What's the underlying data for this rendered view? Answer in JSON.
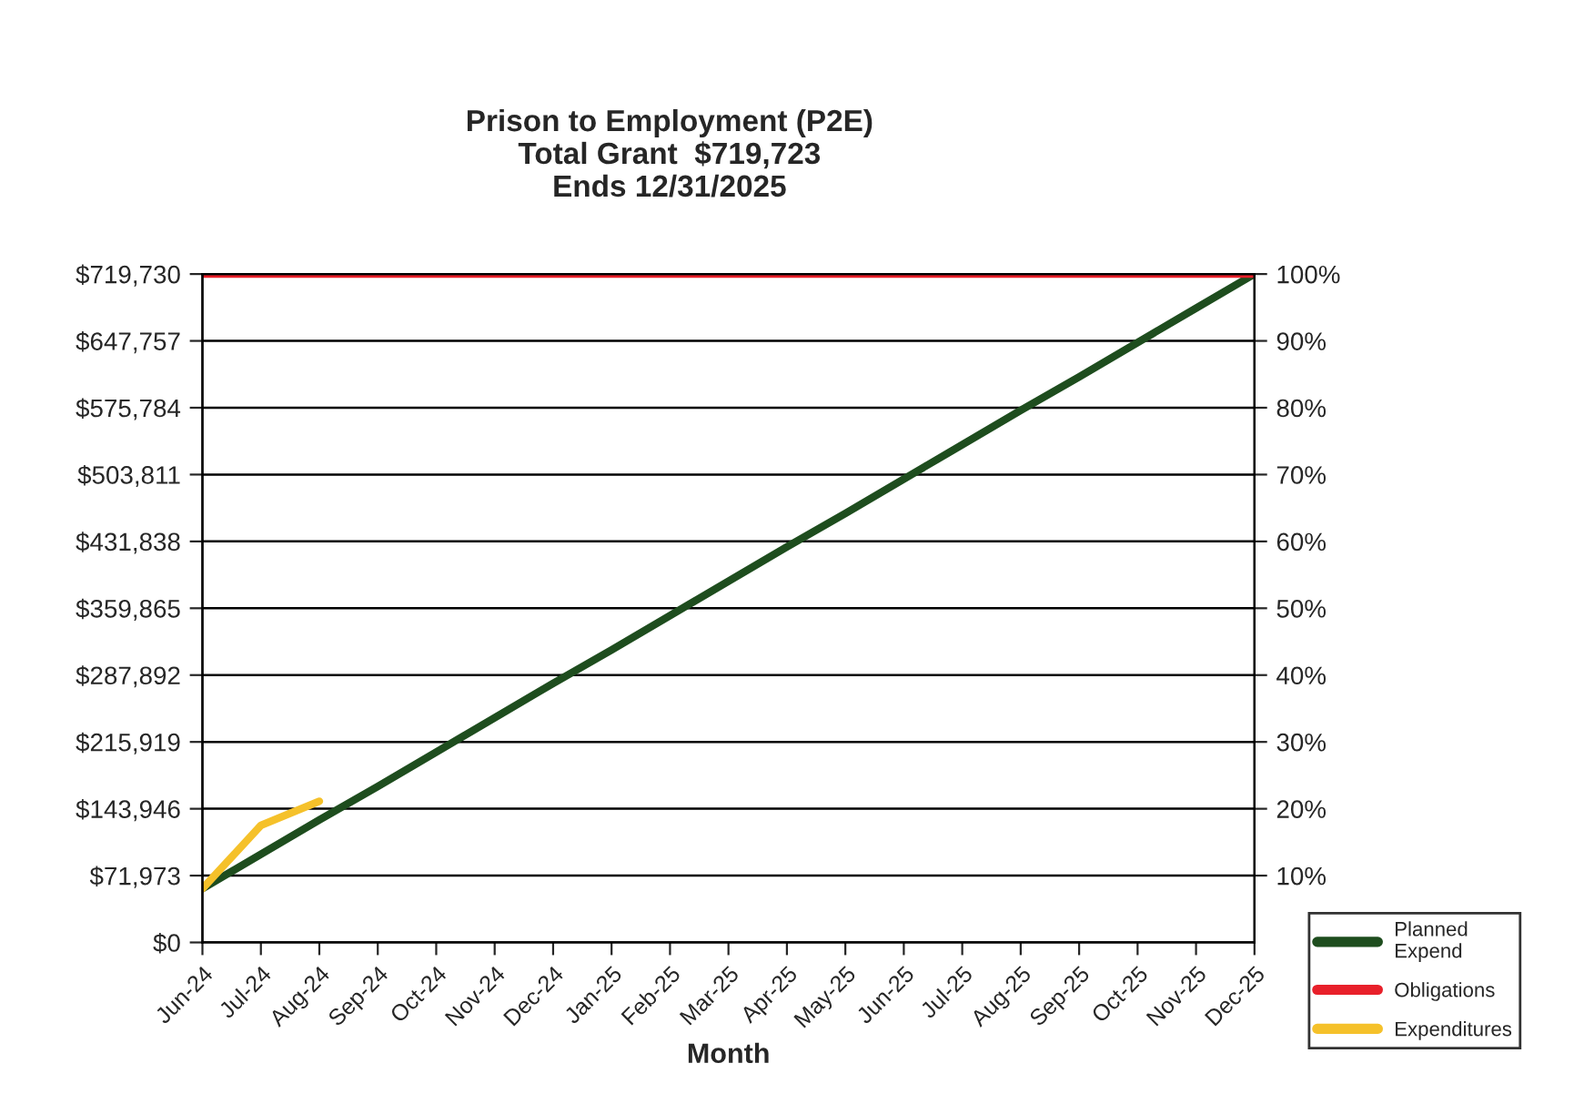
{
  "chart_data": {
    "type": "line",
    "title": "Prison to Employment (P2E)\nTotal Grant  $719,723\nEnds 12/31/2025",
    "xlabel": "Month",
    "categories": [
      "Jun-24",
      "Jul-24",
      "Aug-24",
      "Sep-24",
      "Oct-24",
      "Nov-24",
      "Dec-24",
      "Jan-25",
      "Feb-25",
      "Mar-25",
      "Apr-25",
      "May-25",
      "Jun-25",
      "Jul-25",
      "Aug-25",
      "Sep-25",
      "Oct-25",
      "Nov-25",
      "Dec-25"
    ],
    "series": [
      {
        "name": "Planned Expend",
        "color": "#1e4d1e",
        "values": [
          58000,
          95000,
          132000,
          168000,
          205000,
          242000,
          279000,
          315000,
          352000,
          389000,
          426000,
          462000,
          499000,
          536000,
          573000,
          609000,
          646000,
          683000,
          719730
        ]
      },
      {
        "name": "Obligations",
        "color": "#e8202a",
        "values": [
          719730,
          719730,
          719730,
          719730,
          719730,
          719730,
          719730,
          719730,
          719730,
          719730,
          719730,
          719730,
          719730,
          719730,
          719730,
          719730,
          719730,
          719730,
          719730
        ]
      },
      {
        "name": "Expenditures",
        "color": "#f5c12a",
        "values": [
          58000,
          126000,
          152000,
          null,
          null,
          null,
          null,
          null,
          null,
          null,
          null,
          null,
          null,
          null,
          null,
          null,
          null,
          null,
          null
        ]
      }
    ],
    "ylim": [
      0,
      719730
    ],
    "yticks": [
      {
        "value": 0,
        "label": "$0"
      },
      {
        "value": 71973,
        "label": "$71,973"
      },
      {
        "value": 143946,
        "label": "$143,946"
      },
      {
        "value": 215919,
        "label": "$215,919"
      },
      {
        "value": 287892,
        "label": "$287,892"
      },
      {
        "value": 359865,
        "label": "$359,865"
      },
      {
        "value": 431838,
        "label": "$431,838"
      },
      {
        "value": 503811,
        "label": "$503,811"
      },
      {
        "value": 575784,
        "label": "$575,784"
      },
      {
        "value": 647757,
        "label": "$647,757"
      },
      {
        "value": 719730,
        "label": "$719,730"
      }
    ],
    "y2lim": [
      0,
      100
    ],
    "y2ticks": [
      {
        "value": 10,
        "label": "10%"
      },
      {
        "value": 20,
        "label": "20%"
      },
      {
        "value": 30,
        "label": "30%"
      },
      {
        "value": 40,
        "label": "40%"
      },
      {
        "value": 50,
        "label": "50%"
      },
      {
        "value": 60,
        "label": "60%"
      },
      {
        "value": 70,
        "label": "70%"
      },
      {
        "value": 80,
        "label": "80%"
      },
      {
        "value": 90,
        "label": "90%"
      },
      {
        "value": 100,
        "label": "100%"
      }
    ],
    "grid": "y",
    "legend": "bottom right",
    "marker": "none",
    "line_style": "solid"
  }
}
